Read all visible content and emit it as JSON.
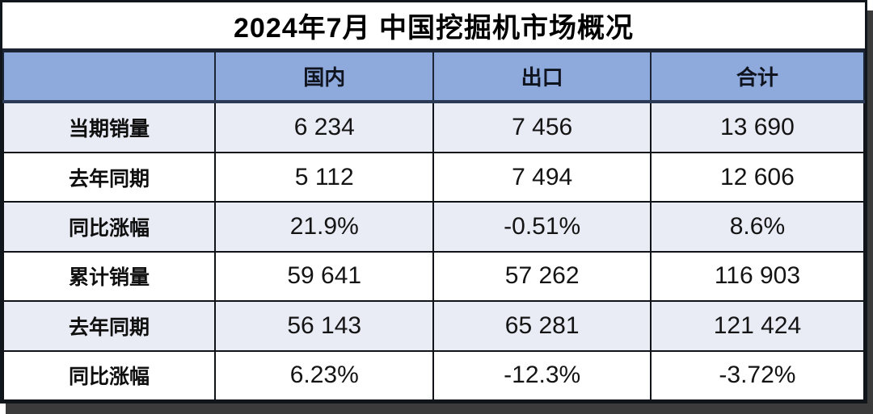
{
  "title": "2024年7月 中国挖掘机市场概况",
  "colors": {
    "header_bg": "#8EA9DB",
    "row_alt_bg": "#E9EBF5",
    "row_bg": "#FFFFFF",
    "grid_border": "#101418",
    "header_border": "#2B3A55",
    "shadow": "#3B3B3B",
    "text": "#141414"
  },
  "chart_data": {
    "type": "table",
    "title": "2024年7月 中国挖掘机市场概况",
    "columns": [
      "",
      "国内",
      "出口",
      "合计"
    ],
    "rows": [
      {
        "label": "当期销量",
        "values": [
          "6 234",
          "7 456",
          "13 690"
        ]
      },
      {
        "label": "去年同期",
        "values": [
          "5 112",
          "7 494",
          "12 606"
        ]
      },
      {
        "label": "同比涨幅",
        "values": [
          "21.9%",
          "-0.51%",
          "8.6%"
        ]
      },
      {
        "label": "累计销量",
        "values": [
          "59 641",
          "57 262",
          "116 903"
        ]
      },
      {
        "label": "去年同期",
        "values": [
          "56 143",
          "65 281",
          "121 424"
        ]
      },
      {
        "label": "同比涨幅",
        "values": [
          "6.23%",
          "-12.3%",
          "-3.72%"
        ]
      }
    ],
    "layout": {
      "grid": true,
      "striped": true,
      "first_stripe": "alt",
      "alignment": "center"
    }
  }
}
